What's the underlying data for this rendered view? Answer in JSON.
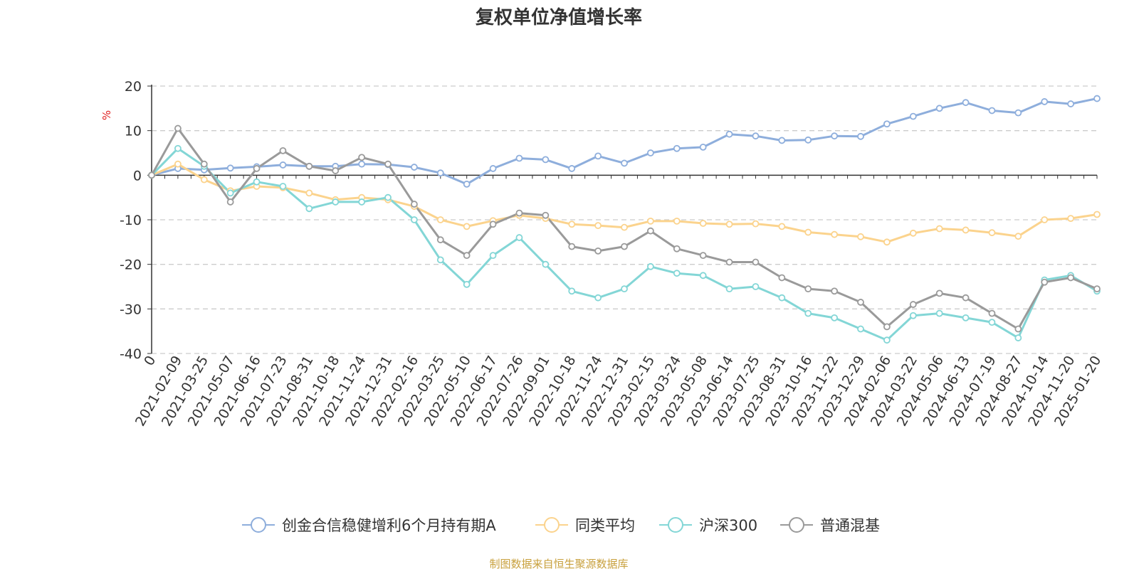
{
  "chart_data": {
    "type": "line",
    "title": "复权单位净值增长率",
    "ylabel": "%",
    "ylim": [
      -40,
      20
    ],
    "yticks": [
      20,
      10,
      0,
      -10,
      -20,
      -30,
      -40
    ],
    "grid": true,
    "legend_position": "bottom",
    "x_tick_labels": [
      "0",
      "2021-02-09",
      "2021-03-25",
      "2021-05-07",
      "2021-06-16",
      "2021-07-23",
      "2021-08-31",
      "2021-10-18",
      "2021-11-24",
      "2021-12-31",
      "2022-02-16",
      "2022-03-25",
      "2022-05-10",
      "2022-06-17",
      "2022-07-26",
      "2022-09-01",
      "2022-10-18",
      "2022-11-24",
      "2022-12-31",
      "2023-02-15",
      "2023-03-24",
      "2023-05-08",
      "2023-06-14",
      "2023-07-25",
      "2023-08-31",
      "2023-10-16",
      "2023-11-22",
      "2023-12-29",
      "2024-02-06",
      "2024-03-22",
      "2024-05-06",
      "2024-06-13",
      "2024-07-19",
      "2024-08-27",
      "2024-10-14",
      "2024-11-20",
      "2025-01-20"
    ],
    "x": [
      "0",
      "2021-02-09",
      "2021-03-25",
      "2021-05-07",
      "2021-06-16",
      "2021-07-23",
      "2021-08-31",
      "2021-10-18",
      "2021-11-24",
      "2021-12-31",
      "2022-02-16",
      "2022-03-25",
      "2022-05-10",
      "2022-06-17",
      "2022-07-26",
      "2022-09-01",
      "2022-10-18",
      "2022-11-24",
      "2022-12-31",
      "2023-02-15",
      "2023-03-24",
      "2023-05-08",
      "2023-06-14",
      "2023-07-25",
      "2023-08-31",
      "2023-10-16",
      "2023-11-22",
      "2023-12-29",
      "2024-02-06",
      "2024-03-22",
      "2024-05-06",
      "2024-06-13",
      "2024-07-19",
      "2024-08-27",
      "2024-10-14",
      "2024-11-20",
      "2025-01-20"
    ],
    "series": [
      {
        "name": "创金合信稳健增利6个月持有期A",
        "color": "#8eaedc",
        "values": [
          0,
          1.5,
          1.2,
          1.6,
          1.9,
          2.3,
          2.0,
          2.0,
          2.5,
          2.4,
          1.8,
          0.5,
          -2.0,
          1.5,
          3.8,
          3.5,
          1.5,
          4.3,
          2.7,
          5.0,
          6.0,
          6.3,
          9.2,
          8.8,
          7.8,
          7.9,
          8.8,
          8.7,
          11.5,
          13.2,
          15.0,
          16.3,
          14.5,
          14.0,
          16.5,
          16.0,
          17.2
        ]
      },
      {
        "name": "同类平均",
        "color": "#fbd38d",
        "values": [
          0,
          2.5,
          -1.0,
          -3.5,
          -2.5,
          -2.8,
          -4.0,
          -5.5,
          -5.0,
          -5.5,
          -7.0,
          -10.0,
          -11.5,
          -10.2,
          -9.0,
          -9.7,
          -11.0,
          -11.3,
          -11.7,
          -10.3,
          -10.3,
          -10.8,
          -11.0,
          -10.9,
          -11.5,
          -12.8,
          -13.3,
          -13.8,
          -15.0,
          -13.0,
          -12.0,
          -12.3,
          -12.9,
          -13.7,
          -10.0,
          -9.7,
          -8.8
        ]
      },
      {
        "name": "沪深300",
        "color": "#83d6d6",
        "values": [
          0,
          6.0,
          2.0,
          -4.0,
          -1.5,
          -2.5,
          -7.5,
          -6.0,
          -6.0,
          -5.0,
          -10.0,
          -19.0,
          -24.5,
          -18.0,
          -14.0,
          -20.0,
          -26.0,
          -27.5,
          -25.5,
          -20.5,
          -22.0,
          -22.5,
          -25.5,
          -25.0,
          -27.5,
          -31.0,
          -32.0,
          -34.5,
          -37.0,
          -31.5,
          -31.0,
          -32.0,
          -33.0,
          -36.5,
          -23.5,
          -22.5,
          -26.0
        ]
      },
      {
        "name": "普通混基",
        "color": "#9a9a9a",
        "values": [
          0,
          10.5,
          2.5,
          -6.0,
          1.5,
          5.5,
          2.0,
          1.0,
          4.0,
          2.5,
          -6.5,
          -14.5,
          -18.0,
          -11.0,
          -8.5,
          -9.0,
          -16.0,
          -17.0,
          -16.0,
          -12.5,
          -16.5,
          -18.0,
          -19.5,
          -19.5,
          -23.0,
          -25.5,
          -26.0,
          -28.5,
          -34.0,
          -29.0,
          -26.5,
          -27.5,
          -31.0,
          -34.5,
          -24.0,
          -23.0,
          -25.5
        ]
      }
    ]
  },
  "source": "制图数据来自恒生聚源数据库"
}
